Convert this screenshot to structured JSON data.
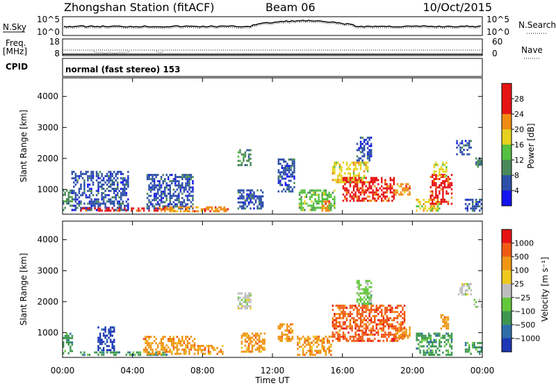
{
  "header": {
    "station": "Zhongshan Station (fitACF)",
    "beam": "Beam 06",
    "date": "10/Oct/2015"
  },
  "strip": {
    "nsky_label": "N.Sky",
    "nsky_ticks": [
      "10^5",
      "10^0"
    ],
    "nsearch_label": "N.Search",
    "nsearch_ticks": [
      "10^5",
      "10^0"
    ],
    "freq_label_1": "Freq.",
    "freq_label_2": "[MHz]",
    "freq_ticks": [
      "18",
      "8"
    ],
    "nave_label": "Nave",
    "nave_ticks": [
      "60",
      "0"
    ],
    "cpid_label": "CPID",
    "cpid_text": "normal (fast stereo) 153"
  },
  "chart_data": [
    {
      "type": "heatmap",
      "name": "power",
      "ylabel": "Slant Range [km]",
      "yticks": [
        "1000",
        "2000",
        "3000",
        "4000"
      ],
      "ylim": [
        200,
        4600
      ],
      "xlim": [
        0,
        24
      ],
      "colorbar": {
        "label": "Power [dB]",
        "ticks": [
          "4",
          "8",
          "12",
          "16",
          "20",
          "24",
          "28"
        ],
        "colors": [
          "#1414f0",
          "#2d4fa8",
          "#4a8a5a",
          "#55c040",
          "#e6d21e",
          "#f08c14",
          "#e61414",
          "#e61414"
        ]
      },
      "patches": [
        {
          "t0": 0.0,
          "t1": 0.6,
          "r0": 300,
          "r1": 1000,
          "level": 2
        },
        {
          "t0": 0.5,
          "t1": 3.8,
          "r0": 300,
          "r1": 1600,
          "level": 1
        },
        {
          "t0": 1.0,
          "t1": 5.8,
          "r0": 280,
          "r1": 420,
          "level": 6
        },
        {
          "t0": 4.8,
          "t1": 7.5,
          "r0": 350,
          "r1": 1500,
          "level": 1
        },
        {
          "t0": 5.5,
          "t1": 9.5,
          "r0": 260,
          "r1": 450,
          "level": 5
        },
        {
          "t0": 10.0,
          "t1": 10.8,
          "r0": 1750,
          "r1": 2300,
          "level": 2
        },
        {
          "t0": 10.0,
          "t1": 11.5,
          "r0": 350,
          "r1": 1000,
          "level": 1
        },
        {
          "t0": 12.3,
          "t1": 13.3,
          "r0": 900,
          "r1": 2000,
          "level": 1
        },
        {
          "t0": 13.5,
          "t1": 15.6,
          "r0": 300,
          "r1": 1000,
          "level": 3
        },
        {
          "t0": 14.8,
          "t1": 15.3,
          "r0": 280,
          "r1": 650,
          "level": 5
        },
        {
          "t0": 15.4,
          "t1": 17.5,
          "r0": 1200,
          "r1": 1900,
          "level": 4
        },
        {
          "t0": 16.0,
          "t1": 19.0,
          "r0": 600,
          "r1": 1400,
          "level": 6
        },
        {
          "t0": 16.8,
          "t1": 17.7,
          "r0": 1900,
          "r1": 2700,
          "level": 1
        },
        {
          "t0": 19.0,
          "t1": 19.9,
          "r0": 800,
          "r1": 1200,
          "level": 5
        },
        {
          "t0": 20.2,
          "t1": 21.6,
          "r0": 280,
          "r1": 700,
          "level": 4
        },
        {
          "t0": 21.0,
          "t1": 22.3,
          "r0": 500,
          "r1": 1500,
          "level": 6
        },
        {
          "t0": 21.2,
          "t1": 22.0,
          "r0": 1400,
          "r1": 1900,
          "level": 4
        },
        {
          "t0": 22.5,
          "t1": 23.4,
          "r0": 2100,
          "r1": 2600,
          "level": 1
        },
        {
          "t0": 23.0,
          "t1": 24.0,
          "r0": 280,
          "r1": 700,
          "level": 1
        },
        {
          "t0": 23.6,
          "t1": 24.0,
          "r0": 1700,
          "r1": 2100,
          "level": 2
        }
      ]
    },
    {
      "type": "heatmap",
      "name": "velocity",
      "ylabel": "Slant Range [km]",
      "yticks": [
        "1000",
        "2000",
        "3000",
        "4000"
      ],
      "ylim": [
        200,
        4600
      ],
      "xlim": [
        0,
        24
      ],
      "colorbar": {
        "label": "Velocity [m s⁻¹]",
        "ticks": [
          "1000",
          "500",
          "100",
          "25",
          "−25",
          "−100",
          "−500",
          "−1000"
        ],
        "colors": [
          "#1e37b4",
          "#2d6eaa",
          "#3c9650",
          "#64c83c",
          "#bebebe",
          "#f0c81e",
          "#f09614",
          "#f05a14",
          "#e61414"
        ]
      },
      "patches": [
        {
          "t0": 0.0,
          "t1": 0.6,
          "r0": 300,
          "r1": 1000,
          "level": 2
        },
        {
          "t0": 1.0,
          "t1": 6.0,
          "r0": 250,
          "r1": 400,
          "level": 2
        },
        {
          "t0": 2.0,
          "t1": 3.0,
          "r0": 400,
          "r1": 1200,
          "level": 0
        },
        {
          "t0": 4.6,
          "t1": 7.6,
          "r0": 280,
          "r1": 900,
          "level": 6
        },
        {
          "t0": 7.6,
          "t1": 9.2,
          "r0": 280,
          "r1": 600,
          "level": 6
        },
        {
          "t0": 10.0,
          "t1": 10.8,
          "r0": 1750,
          "r1": 2300,
          "level": 4
        },
        {
          "t0": 10.2,
          "t1": 11.6,
          "r0": 350,
          "r1": 1000,
          "level": 6
        },
        {
          "t0": 12.3,
          "t1": 13.2,
          "r0": 700,
          "r1": 1300,
          "level": 6
        },
        {
          "t0": 13.4,
          "t1": 15.4,
          "r0": 250,
          "r1": 900,
          "level": 6
        },
        {
          "t0": 15.4,
          "t1": 19.6,
          "r0": 700,
          "r1": 1900,
          "level": 7
        },
        {
          "t0": 16.8,
          "t1": 17.7,
          "r0": 1900,
          "r1": 2700,
          "level": 3
        },
        {
          "t0": 19.0,
          "t1": 19.9,
          "r0": 800,
          "r1": 1200,
          "level": 6
        },
        {
          "t0": 20.2,
          "t1": 22.3,
          "r0": 250,
          "r1": 1000,
          "level": 2
        },
        {
          "t0": 21.6,
          "t1": 22.1,
          "r0": 1100,
          "r1": 1600,
          "level": 6
        },
        {
          "t0": 22.6,
          "t1": 23.4,
          "r0": 2200,
          "r1": 2600,
          "level": 4
        },
        {
          "t0": 23.5,
          "t1": 24.0,
          "r0": 1800,
          "r1": 2100,
          "level": 4
        },
        {
          "t0": 23.0,
          "t1": 24.0,
          "r0": 280,
          "r1": 700,
          "level": 2
        }
      ]
    }
  ],
  "xaxis": {
    "ticks": [
      "00:00",
      "04:00",
      "08:00",
      "12:00",
      "16:00",
      "20:00",
      "00:00"
    ],
    "label": "Time UT"
  }
}
